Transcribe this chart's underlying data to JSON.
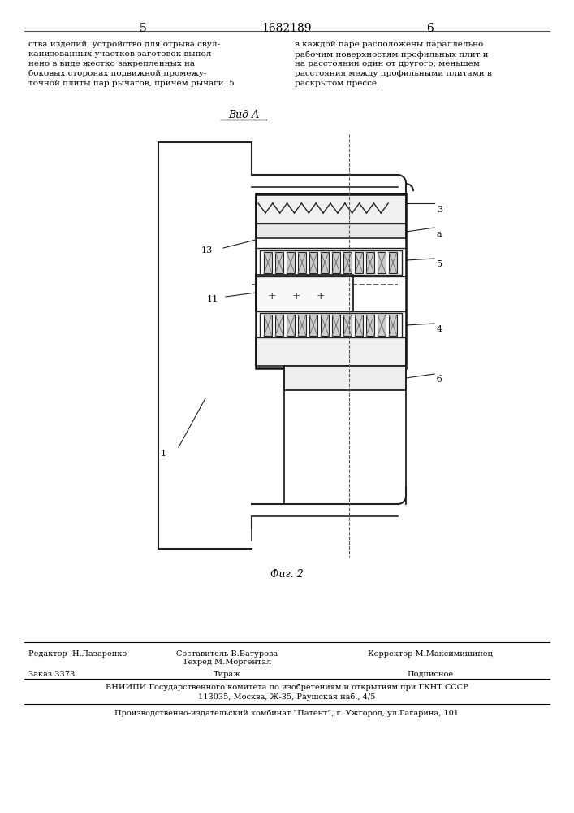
{
  "page_number_left": "5",
  "page_number_center": "1682189",
  "page_number_right": "6",
  "text_left": "ства изделий, устройство для отрыва свул-\nканизованных участков заготовок выпол-\nнено в виде жестко закрепленных на\nбоковых сторонах подвижной промежу-\nточной плиты пар рычагов, причем рычаги  5",
  "text_right": "в каждой паре расположены параллельно\nрабочим поверхностям профильных плит и\nна расстоянии один от другого, меньшем\nрасстояния между профильными плитами в\nраскрытом прессе.",
  "view_label": "Вид А",
  "fig_label": "Фиг. 2",
  "bottom_line1_left": "Редактор  Н.Лазаренко",
  "bottom_line1_center": "Составитель В.Батурова\nТехред М.Моргентал",
  "bottom_line1_right": "Корректор М.Максимишинец",
  "bottom_line2_left": "Заказ 3373",
  "bottom_line2_center": "Тираж",
  "bottom_line2_right": "Подписное",
  "bottom_line3": "ВНИИПИ Государственного комитета по изобретениям и открытиям при ГКНТ СССР",
  "bottom_line4": "113035, Москва, Ж-35, Раушская наб., 4/5",
  "bottom_line5": "Производственно-издательский комбинат \"Патент\", г. Ужгород, ул.Гагарина, 101",
  "bg_color": "#ffffff",
  "text_color": "#000000",
  "line_color": "#333333"
}
